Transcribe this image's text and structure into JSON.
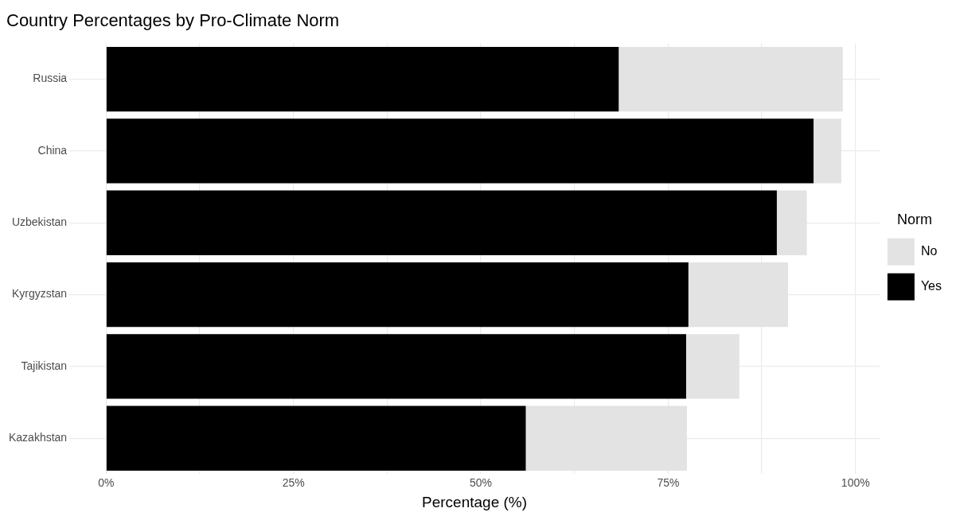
{
  "chart_data": {
    "type": "bar",
    "orientation": "horizontal",
    "stacked": true,
    "title": "Country Percentages by Pro-Climate Norm",
    "xlabel": "Percentage (%)",
    "legend_title": "Norm",
    "legend": "right",
    "grid": true,
    "categories": [
      "Russia",
      "China",
      "Uzbekistan",
      "Kyrgyzstan",
      "Tajikistan",
      "Kazakhstan"
    ],
    "series": [
      {
        "name": "Yes",
        "color": "#000000",
        "values": [
          68.4,
          94.4,
          89.5,
          77.7,
          77.4,
          56.0
        ]
      },
      {
        "name": "No",
        "color": "#e3e3e3",
        "values": [
          29.9,
          3.7,
          4.0,
          13.3,
          7.1,
          21.5
        ]
      }
    ],
    "xlim": [
      -4.9,
      103.2
    ],
    "xticks": [
      {
        "value": 0,
        "label": "0%"
      },
      {
        "value": 12.5,
        "label": null
      },
      {
        "value": 25,
        "label": "25%"
      },
      {
        "value": 37.5,
        "label": null
      },
      {
        "value": 50,
        "label": "50%"
      },
      {
        "value": 62.5,
        "label": null
      },
      {
        "value": 75,
        "label": "75%"
      },
      {
        "value": 87.5,
        "label": null
      },
      {
        "value": 100,
        "label": "100%"
      }
    ]
  }
}
